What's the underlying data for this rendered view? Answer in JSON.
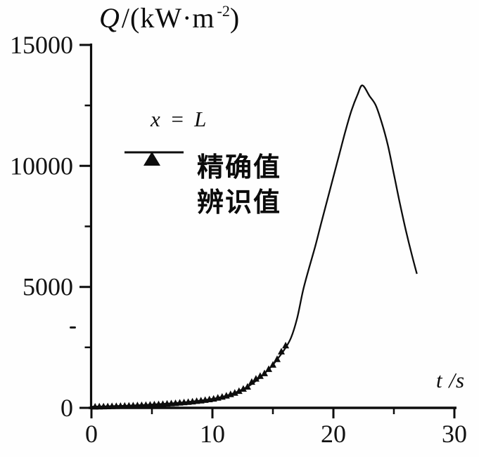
{
  "figure": {
    "title": {
      "symbol": "Q",
      "unit_open": "/(kW·m",
      "sup": "-2",
      "unit_close": ")"
    },
    "x_label": {
      "symbol": "t",
      "rest": " /s"
    },
    "annotation": "x = L",
    "legend": [
      {
        "marker": "line",
        "label": "精确值"
      },
      {
        "marker": "triangle",
        "label": "辨识值"
      }
    ]
  },
  "colors": {
    "ink": "#0d0d0d",
    "background": "#fefefe"
  },
  "chart_data": {
    "type": "line",
    "title": "Q/(kW·m⁻²)",
    "xlabel": "t/s",
    "ylabel": "Q/(kW·m⁻²)",
    "annotation": "x = L",
    "xlim": [
      0,
      30
    ],
    "ylim": [
      0,
      15000
    ],
    "x_ticks_major": [
      0,
      10,
      20,
      30
    ],
    "x_ticks_minor": [
      5,
      15,
      25
    ],
    "y_ticks_major": [
      0,
      5000,
      10000,
      15000
    ],
    "y_ticks_minor": [
      2500,
      7500,
      12500
    ],
    "grid": false,
    "legend_position": "upper-left-inside",
    "peak": {
      "t": 22.4,
      "Q": 13330
    },
    "series": [
      {
        "name": "精确值",
        "type": "line",
        "x": [
          0,
          1,
          2,
          3,
          4,
          5,
          6,
          7,
          8,
          9,
          10,
          10.5,
          11,
          11.5,
          12,
          12.5,
          13,
          13.5,
          14,
          14.5,
          15,
          15.5,
          16,
          16.5,
          17,
          17.5,
          18,
          18.5,
          19,
          19.5,
          20,
          20.5,
          21,
          21.5,
          22,
          22.4,
          23,
          23.5,
          24,
          24.5,
          25,
          25.5,
          26,
          26.5,
          26.9
        ],
        "y": [
          50,
          60,
          75,
          90,
          110,
          135,
          165,
          200,
          245,
          300,
          370,
          420,
          480,
          560,
          650,
          770,
          900,
          1080,
          1280,
          1520,
          1780,
          2100,
          2450,
          2900,
          3700,
          4870,
          5800,
          6680,
          7650,
          8600,
          9550,
          10500,
          11450,
          12300,
          12950,
          13330,
          12880,
          12505,
          11780,
          10860,
          9660,
          8440,
          7310,
          6295,
          5540
        ]
      },
      {
        "name": "辨识值",
        "type": "scatter",
        "marker": "triangle",
        "x": [
          0.3,
          0.65,
          1.0,
          1.35,
          1.7,
          2.05,
          2.4,
          2.75,
          3.1,
          3.45,
          3.8,
          4.15,
          4.5,
          4.85,
          5.2,
          5.55,
          5.9,
          6.25,
          6.6,
          6.95,
          7.3,
          7.65,
          8.0,
          8.35,
          8.7,
          9.05,
          9.4,
          9.75,
          10.1,
          10.45,
          10.8,
          11.15,
          11.5,
          11.85,
          12.2,
          12.55,
          12.9,
          13.25,
          13.6,
          13.95,
          14.3,
          14.65,
          15.0,
          15.35,
          15.7,
          16.05
        ],
        "y": [
          53,
          57,
          60,
          65,
          71,
          76,
          81,
          86,
          92,
          99,
          106,
          114,
          123,
          131,
          141,
          152,
          162,
          174,
          186,
          198,
          214,
          229,
          245,
          264,
          284,
          304,
          328,
          353,
          381,
          420,
          458,
          506,
          565,
          625,
          700,
          788,
          875,
          1075,
          1208,
          1321,
          1430,
          1605,
          1780,
          2015,
          2330,
          2580
        ]
      }
    ]
  }
}
